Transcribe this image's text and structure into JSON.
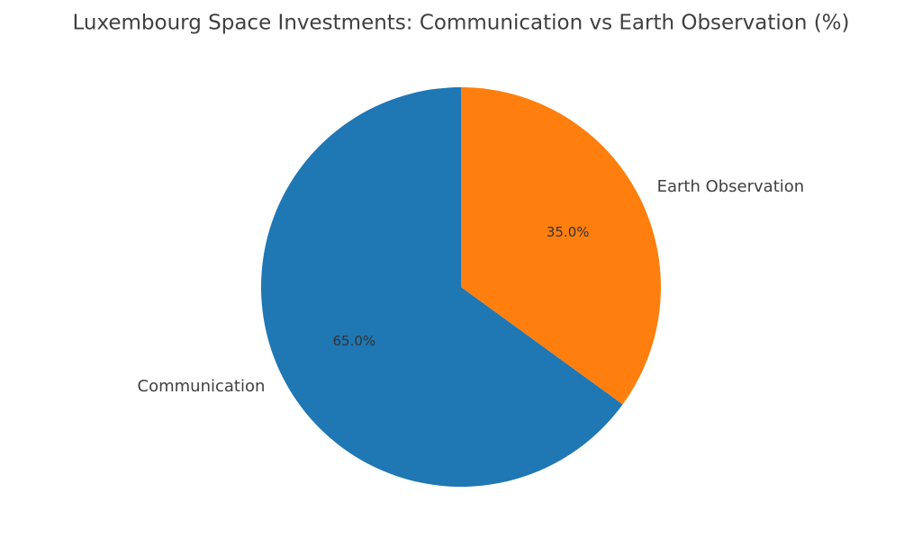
{
  "chart_data": {
    "type": "pie",
    "title": "Luxembourg Space Investments: Communication vs Earth Observation (%)",
    "categories": [
      "Communication",
      "Earth Observation"
    ],
    "values": [
      65,
      35
    ],
    "value_labels": [
      "65.0%",
      "35.0%"
    ],
    "colors": [
      "#1f77b4",
      "#ff7f0e"
    ]
  }
}
